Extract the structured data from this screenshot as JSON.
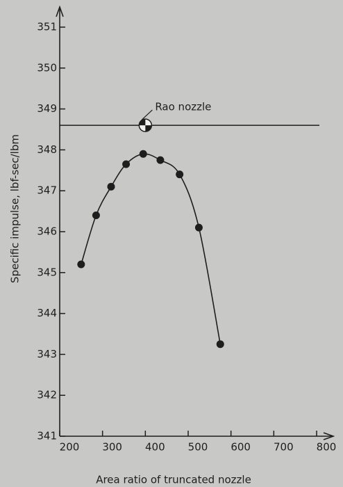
{
  "chart_data": {
    "type": "line",
    "x_label": "Area ratio of truncated nozzle",
    "y_label": "Specific impulse, lbf-sec/lbm",
    "x": [
      250,
      285,
      320,
      355,
      395,
      435,
      480,
      525,
      575
    ],
    "series": [
      {
        "values": [
          345.2,
          346.4,
          347.1,
          347.65,
          347.9,
          347.75,
          347.4,
          346.1,
          343.25
        ],
        "color": "#1e1e1e"
      }
    ],
    "reference_line": {
      "label": "Rao nozzle",
      "value": 348.6,
      "x": 400
    },
    "xlim": [
      200,
      800
    ],
    "xticks": [
      200,
      300,
      400,
      500,
      600,
      700,
      800
    ],
    "ylim": [
      341,
      351
    ],
    "yticks": [
      341,
      342,
      343,
      344,
      345,
      346,
      347,
      348,
      349,
      350,
      351
    ]
  }
}
